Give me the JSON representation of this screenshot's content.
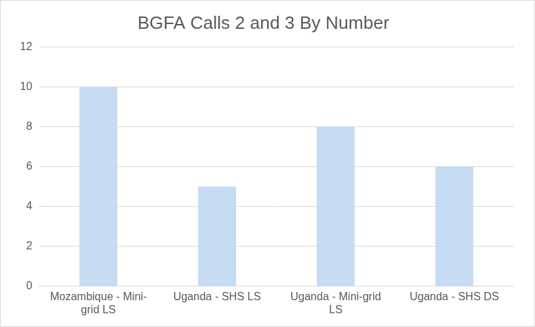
{
  "chart_data": {
    "type": "bar",
    "title": "BGFA Calls 2 and 3 By Number",
    "categories": [
      "Mozambique - Mini-grid LS",
      "Uganda - SHS LS",
      "Uganda - Mini-grid LS",
      "Uganda - SHS DS"
    ],
    "values": [
      10,
      5,
      8,
      6
    ],
    "color": "#c5dcf2",
    "ylim": [
      0,
      12
    ],
    "yticks": [
      0,
      2,
      4,
      6,
      8,
      10,
      12
    ],
    "grid": true
  }
}
